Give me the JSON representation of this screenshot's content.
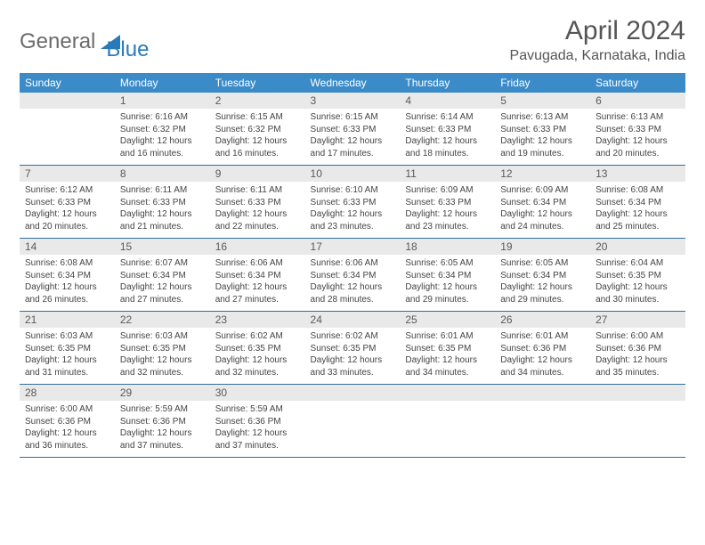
{
  "brand": {
    "text1": "General",
    "text2": "Blue",
    "shape_color": "#2a7ab8",
    "text_gray": "#6b6b6b"
  },
  "title": "April 2024",
  "location": "Pavugada, Karnataka, India",
  "colors": {
    "header_bg": "#3b8bc8",
    "header_text": "#ffffff",
    "daynum_bg": "#e9e9e9",
    "daynum_text": "#5a5a5a",
    "border": "#2f6fa3",
    "body_text": "#444444"
  },
  "day_headers": [
    "Sunday",
    "Monday",
    "Tuesday",
    "Wednesday",
    "Thursday",
    "Friday",
    "Saturday"
  ],
  "weeks": [
    [
      {
        "n": "",
        "sr": "",
        "ss": "",
        "dl": ""
      },
      {
        "n": "1",
        "sr": "Sunrise: 6:16 AM",
        "ss": "Sunset: 6:32 PM",
        "dl": "Daylight: 12 hours and 16 minutes."
      },
      {
        "n": "2",
        "sr": "Sunrise: 6:15 AM",
        "ss": "Sunset: 6:32 PM",
        "dl": "Daylight: 12 hours and 16 minutes."
      },
      {
        "n": "3",
        "sr": "Sunrise: 6:15 AM",
        "ss": "Sunset: 6:33 PM",
        "dl": "Daylight: 12 hours and 17 minutes."
      },
      {
        "n": "4",
        "sr": "Sunrise: 6:14 AM",
        "ss": "Sunset: 6:33 PM",
        "dl": "Daylight: 12 hours and 18 minutes."
      },
      {
        "n": "5",
        "sr": "Sunrise: 6:13 AM",
        "ss": "Sunset: 6:33 PM",
        "dl": "Daylight: 12 hours and 19 minutes."
      },
      {
        "n": "6",
        "sr": "Sunrise: 6:13 AM",
        "ss": "Sunset: 6:33 PM",
        "dl": "Daylight: 12 hours and 20 minutes."
      }
    ],
    [
      {
        "n": "7",
        "sr": "Sunrise: 6:12 AM",
        "ss": "Sunset: 6:33 PM",
        "dl": "Daylight: 12 hours and 20 minutes."
      },
      {
        "n": "8",
        "sr": "Sunrise: 6:11 AM",
        "ss": "Sunset: 6:33 PM",
        "dl": "Daylight: 12 hours and 21 minutes."
      },
      {
        "n": "9",
        "sr": "Sunrise: 6:11 AM",
        "ss": "Sunset: 6:33 PM",
        "dl": "Daylight: 12 hours and 22 minutes."
      },
      {
        "n": "10",
        "sr": "Sunrise: 6:10 AM",
        "ss": "Sunset: 6:33 PM",
        "dl": "Daylight: 12 hours and 23 minutes."
      },
      {
        "n": "11",
        "sr": "Sunrise: 6:09 AM",
        "ss": "Sunset: 6:33 PM",
        "dl": "Daylight: 12 hours and 23 minutes."
      },
      {
        "n": "12",
        "sr": "Sunrise: 6:09 AM",
        "ss": "Sunset: 6:34 PM",
        "dl": "Daylight: 12 hours and 24 minutes."
      },
      {
        "n": "13",
        "sr": "Sunrise: 6:08 AM",
        "ss": "Sunset: 6:34 PM",
        "dl": "Daylight: 12 hours and 25 minutes."
      }
    ],
    [
      {
        "n": "14",
        "sr": "Sunrise: 6:08 AM",
        "ss": "Sunset: 6:34 PM",
        "dl": "Daylight: 12 hours and 26 minutes."
      },
      {
        "n": "15",
        "sr": "Sunrise: 6:07 AM",
        "ss": "Sunset: 6:34 PM",
        "dl": "Daylight: 12 hours and 27 minutes."
      },
      {
        "n": "16",
        "sr": "Sunrise: 6:06 AM",
        "ss": "Sunset: 6:34 PM",
        "dl": "Daylight: 12 hours and 27 minutes."
      },
      {
        "n": "17",
        "sr": "Sunrise: 6:06 AM",
        "ss": "Sunset: 6:34 PM",
        "dl": "Daylight: 12 hours and 28 minutes."
      },
      {
        "n": "18",
        "sr": "Sunrise: 6:05 AM",
        "ss": "Sunset: 6:34 PM",
        "dl": "Daylight: 12 hours and 29 minutes."
      },
      {
        "n": "19",
        "sr": "Sunrise: 6:05 AM",
        "ss": "Sunset: 6:34 PM",
        "dl": "Daylight: 12 hours and 29 minutes."
      },
      {
        "n": "20",
        "sr": "Sunrise: 6:04 AM",
        "ss": "Sunset: 6:35 PM",
        "dl": "Daylight: 12 hours and 30 minutes."
      }
    ],
    [
      {
        "n": "21",
        "sr": "Sunrise: 6:03 AM",
        "ss": "Sunset: 6:35 PM",
        "dl": "Daylight: 12 hours and 31 minutes."
      },
      {
        "n": "22",
        "sr": "Sunrise: 6:03 AM",
        "ss": "Sunset: 6:35 PM",
        "dl": "Daylight: 12 hours and 32 minutes."
      },
      {
        "n": "23",
        "sr": "Sunrise: 6:02 AM",
        "ss": "Sunset: 6:35 PM",
        "dl": "Daylight: 12 hours and 32 minutes."
      },
      {
        "n": "24",
        "sr": "Sunrise: 6:02 AM",
        "ss": "Sunset: 6:35 PM",
        "dl": "Daylight: 12 hours and 33 minutes."
      },
      {
        "n": "25",
        "sr": "Sunrise: 6:01 AM",
        "ss": "Sunset: 6:35 PM",
        "dl": "Daylight: 12 hours and 34 minutes."
      },
      {
        "n": "26",
        "sr": "Sunrise: 6:01 AM",
        "ss": "Sunset: 6:36 PM",
        "dl": "Daylight: 12 hours and 34 minutes."
      },
      {
        "n": "27",
        "sr": "Sunrise: 6:00 AM",
        "ss": "Sunset: 6:36 PM",
        "dl": "Daylight: 12 hours and 35 minutes."
      }
    ],
    [
      {
        "n": "28",
        "sr": "Sunrise: 6:00 AM",
        "ss": "Sunset: 6:36 PM",
        "dl": "Daylight: 12 hours and 36 minutes."
      },
      {
        "n": "29",
        "sr": "Sunrise: 5:59 AM",
        "ss": "Sunset: 6:36 PM",
        "dl": "Daylight: 12 hours and 37 minutes."
      },
      {
        "n": "30",
        "sr": "Sunrise: 5:59 AM",
        "ss": "Sunset: 6:36 PM",
        "dl": "Daylight: 12 hours and 37 minutes."
      },
      {
        "n": "",
        "sr": "",
        "ss": "",
        "dl": ""
      },
      {
        "n": "",
        "sr": "",
        "ss": "",
        "dl": ""
      },
      {
        "n": "",
        "sr": "",
        "ss": "",
        "dl": ""
      },
      {
        "n": "",
        "sr": "",
        "ss": "",
        "dl": ""
      }
    ]
  ]
}
